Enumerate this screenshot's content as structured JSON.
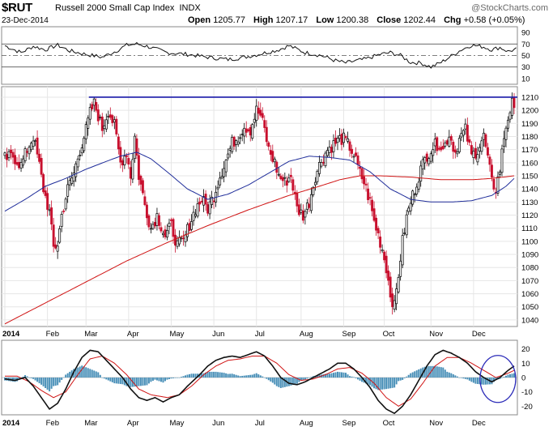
{
  "header": {
    "symbol": "$RUT",
    "name": "Russell 2000 Small Cap Index",
    "exchange": "INDX",
    "date": "23-Dec-2014",
    "watermark": "@StockCharts.com",
    "open_label": "Open",
    "open_value": "1205.77",
    "high_label": "High",
    "high_value": "1207.17",
    "low_label": "Low",
    "low_value": "1200.38",
    "close_label": "Close",
    "close_value": "1202.44",
    "chg_label": "Chg",
    "chg_value": "+0.58 (+0.05%)"
  },
  "colors": {
    "up": "#000000",
    "down": "#c8102e",
    "ma_short": "#1f2d9a",
    "ma_long": "#d01414",
    "resistance": "#1a1aa8",
    "histogram": "#4a90b8",
    "grid": "#e6e6e6",
    "circle": "#2a2ab8"
  },
  "chart_data": [
    {
      "type": "line",
      "panel": "rsi",
      "y_ticks": [
        10,
        30,
        50,
        70,
        90
      ],
      "ylim": [
        0,
        100
      ],
      "ref_lines": [
        30,
        50,
        70
      ],
      "anchors": [
        [
          0,
          67
        ],
        [
          8,
          55
        ],
        [
          14,
          66
        ],
        [
          20,
          60
        ],
        [
          26,
          68
        ],
        [
          32,
          58
        ],
        [
          40,
          52
        ],
        [
          48,
          47
        ],
        [
          55,
          58
        ],
        [
          60,
          68
        ],
        [
          65,
          70
        ],
        [
          70,
          66
        ],
        [
          80,
          55
        ],
        [
          90,
          52
        ],
        [
          100,
          47
        ],
        [
          110,
          43
        ],
        [
          118,
          47
        ],
        [
          125,
          52
        ],
        [
          130,
          56
        ],
        [
          135,
          60
        ],
        [
          140,
          67
        ],
        [
          148,
          55
        ],
        [
          156,
          50
        ],
        [
          162,
          42
        ],
        [
          168,
          37
        ],
        [
          172,
          40
        ],
        [
          178,
          44
        ],
        [
          185,
          52
        ],
        [
          190,
          55
        ],
        [
          195,
          50
        ],
        [
          200,
          38
        ],
        [
          205,
          37
        ],
        [
          210,
          30
        ],
        [
          215,
          38
        ],
        [
          220,
          49
        ],
        [
          225,
          60
        ],
        [
          230,
          68
        ],
        [
          236,
          65
        ],
        [
          240,
          60
        ],
        [
          244,
          64
        ],
        [
          248,
          57
        ],
        [
          252,
          61
        ]
      ]
    },
    {
      "type": "candlestick",
      "panel": "price",
      "title": "Russell 2000 Small Cap Index",
      "y_ticks": [
        1040,
        1050,
        1060,
        1070,
        1080,
        1090,
        1100,
        1110,
        1120,
        1130,
        1140,
        1150,
        1160,
        1170,
        1180,
        1190,
        1200,
        1210
      ],
      "ylim": [
        1035,
        1218
      ],
      "x_labels": [
        "2014",
        "Feb",
        "Mar",
        "Apr",
        "May",
        "Jun",
        "Jul",
        "Aug",
        "Sep",
        "Oct",
        "Nov",
        "Dec"
      ],
      "x_label_sessions": [
        0,
        21,
        40,
        61,
        82,
        103,
        124,
        146,
        167,
        187,
        210,
        231
      ],
      "total_sessions": 252,
      "resistance_level": 1210,
      "resistance_from_session": 43,
      "close_anchors": [
        [
          0,
          1163
        ],
        [
          4,
          1165
        ],
        [
          8,
          1158
        ],
        [
          11,
          1170
        ],
        [
          14,
          1180
        ],
        [
          17,
          1158
        ],
        [
          19,
          1140
        ],
        [
          22,
          1122
        ],
        [
          24,
          1095
        ],
        [
          26,
          1098
        ],
        [
          28,
          1120
        ],
        [
          31,
          1140
        ],
        [
          34,
          1152
        ],
        [
          37,
          1170
        ],
        [
          40,
          1185
        ],
        [
          42,
          1198
        ],
        [
          44,
          1205
        ],
        [
          46,
          1196
        ],
        [
          48,
          1186
        ],
        [
          51,
          1200
        ],
        [
          54,
          1188
        ],
        [
          57,
          1160
        ],
        [
          60,
          1168
        ],
        [
          62,
          1150
        ],
        [
          64,
          1180
        ],
        [
          66,
          1150
        ],
        [
          69,
          1128
        ],
        [
          72,
          1110
        ],
        [
          75,
          1120
        ],
        [
          79,
          1104
        ],
        [
          82,
          1112
        ],
        [
          85,
          1097
        ],
        [
          88,
          1100
        ],
        [
          91,
          1113
        ],
        [
          94,
          1125
        ],
        [
          97,
          1132
        ],
        [
          100,
          1125
        ],
        [
          103,
          1135
        ],
        [
          106,
          1150
        ],
        [
          109,
          1162
        ],
        [
          112,
          1175
        ],
        [
          115,
          1180
        ],
        [
          118,
          1188
        ],
        [
          121,
          1185
        ],
        [
          124,
          1200
        ],
        [
          126,
          1196
        ],
        [
          128,
          1185
        ],
        [
          130,
          1170
        ],
        [
          133,
          1160
        ],
        [
          135,
          1150
        ],
        [
          138,
          1145
        ],
        [
          141,
          1150
        ],
        [
          144,
          1125
        ],
        [
          147,
          1120
        ],
        [
          150,
          1130
        ],
        [
          153,
          1150
        ],
        [
          156,
          1162
        ],
        [
          159,
          1170
        ],
        [
          162,
          1174
        ],
        [
          165,
          1178
        ],
        [
          167,
          1178
        ],
        [
          170,
          1172
        ],
        [
          172,
          1166
        ],
        [
          175,
          1152
        ],
        [
          177,
          1145
        ],
        [
          180,
          1130
        ],
        [
          182,
          1115
        ],
        [
          184,
          1105
        ],
        [
          186,
          1094
        ],
        [
          188,
          1080
        ],
        [
          190,
          1060
        ],
        [
          192,
          1050
        ],
        [
          194,
          1075
        ],
        [
          196,
          1100
        ],
        [
          198,
          1118
        ],
        [
          200,
          1130
        ],
        [
          202,
          1140
        ],
        [
          205,
          1155
        ],
        [
          208,
          1166
        ],
        [
          211,
          1172
        ],
        [
          214,
          1175
        ],
        [
          216,
          1170
        ],
        [
          219,
          1182
        ],
        [
          222,
          1168
        ],
        [
          224,
          1178
        ],
        [
          227,
          1185
        ],
        [
          230,
          1165
        ],
        [
          233,
          1170
        ],
        [
          236,
          1180
        ],
        [
          238,
          1163
        ],
        [
          240,
          1145
        ],
        [
          242,
          1140
        ],
        [
          244,
          1155
        ],
        [
          246,
          1180
        ],
        [
          248,
          1195
        ],
        [
          250,
          1205
        ],
        [
          251,
          1202
        ]
      ],
      "ma_short_anchors": [
        [
          0,
          1123
        ],
        [
          10,
          1132
        ],
        [
          20,
          1142
        ],
        [
          30,
          1148
        ],
        [
          40,
          1155
        ],
        [
          50,
          1161
        ],
        [
          57,
          1165
        ],
        [
          65,
          1168
        ],
        [
          72,
          1163
        ],
        [
          80,
          1153
        ],
        [
          90,
          1140
        ],
        [
          100,
          1132
        ],
        [
          110,
          1136
        ],
        [
          120,
          1143
        ],
        [
          130,
          1152
        ],
        [
          140,
          1161
        ],
        [
          150,
          1165
        ],
        [
          160,
          1164
        ],
        [
          170,
          1162
        ],
        [
          180,
          1153
        ],
        [
          190,
          1140
        ],
        [
          200,
          1132
        ],
        [
          210,
          1130
        ],
        [
          220,
          1130
        ],
        [
          230,
          1131
        ],
        [
          240,
          1135
        ],
        [
          247,
          1142
        ],
        [
          251,
          1148
        ]
      ],
      "ma_long_anchors": [
        [
          0,
          1037
        ],
        [
          20,
          1053
        ],
        [
          40,
          1069
        ],
        [
          60,
          1085
        ],
        [
          80,
          1099
        ],
        [
          100,
          1112
        ],
        [
          120,
          1124
        ],
        [
          140,
          1135
        ],
        [
          155,
          1142
        ],
        [
          165,
          1147
        ],
        [
          175,
          1150
        ],
        [
          185,
          1150
        ],
        [
          200,
          1149
        ],
        [
          215,
          1147
        ],
        [
          230,
          1147
        ],
        [
          240,
          1148
        ],
        [
          251,
          1150
        ]
      ]
    },
    {
      "type": "line",
      "panel": "macd",
      "y_ticks": [
        -20,
        -10,
        0,
        10,
        20
      ],
      "ylim": [
        -26,
        26
      ],
      "highlight_circle_session": 241,
      "macd_anchors": [
        [
          0,
          -1
        ],
        [
          5,
          -2
        ],
        [
          10,
          0
        ],
        [
          14,
          -6
        ],
        [
          18,
          -14
        ],
        [
          22,
          -22
        ],
        [
          26,
          -18
        ],
        [
          30,
          -8
        ],
        [
          34,
          4
        ],
        [
          38,
          14
        ],
        [
          42,
          19
        ],
        [
          46,
          18
        ],
        [
          50,
          12
        ],
        [
          54,
          6
        ],
        [
          58,
          0
        ],
        [
          62,
          -8
        ],
        [
          66,
          -14
        ],
        [
          70,
          -16
        ],
        [
          74,
          -14
        ],
        [
          78,
          -17
        ],
        [
          82,
          -14
        ],
        [
          86,
          -12
        ],
        [
          90,
          -6
        ],
        [
          96,
          2
        ],
        [
          100,
          8
        ],
        [
          104,
          12
        ],
        [
          108,
          14
        ],
        [
          112,
          15
        ],
        [
          116,
          14
        ],
        [
          120,
          16
        ],
        [
          124,
          18
        ],
        [
          128,
          15
        ],
        [
          132,
          8
        ],
        [
          136,
          0
        ],
        [
          140,
          -4
        ],
        [
          144,
          -5
        ],
        [
          148,
          -3
        ],
        [
          152,
          0
        ],
        [
          156,
          3
        ],
        [
          160,
          6
        ],
        [
          164,
          10
        ],
        [
          168,
          10
        ],
        [
          172,
          6
        ],
        [
          176,
          0
        ],
        [
          180,
          -7
        ],
        [
          184,
          -16
        ],
        [
          188,
          -22
        ],
        [
          192,
          -25
        ],
        [
          196,
          -20
        ],
        [
          200,
          -12
        ],
        [
          204,
          -2
        ],
        [
          208,
          8
        ],
        [
          212,
          16
        ],
        [
          216,
          19
        ],
        [
          220,
          17
        ],
        [
          224,
          14
        ],
        [
          228,
          10
        ],
        [
          232,
          4
        ],
        [
          236,
          0
        ],
        [
          240,
          -3
        ],
        [
          244,
          0
        ],
        [
          248,
          5
        ],
        [
          251,
          8
        ]
      ],
      "signal_anchors": [
        [
          0,
          1
        ],
        [
          6,
          1
        ],
        [
          12,
          -3
        ],
        [
          18,
          -9
        ],
        [
          24,
          -14
        ],
        [
          30,
          -10
        ],
        [
          36,
          2
        ],
        [
          42,
          13
        ],
        [
          48,
          15
        ],
        [
          54,
          10
        ],
        [
          60,
          2
        ],
        [
          66,
          -8
        ],
        [
          72,
          -12
        ],
        [
          80,
          -14
        ],
        [
          86,
          -12
        ],
        [
          92,
          -6
        ],
        [
          98,
          2
        ],
        [
          104,
          8
        ],
        [
          110,
          12
        ],
        [
          116,
          13
        ],
        [
          122,
          15
        ],
        [
          128,
          15
        ],
        [
          134,
          10
        ],
        [
          140,
          2
        ],
        [
          146,
          -2
        ],
        [
          152,
          -1
        ],
        [
          158,
          2
        ],
        [
          164,
          6
        ],
        [
          170,
          7
        ],
        [
          176,
          3
        ],
        [
          182,
          -4
        ],
        [
          188,
          -14
        ],
        [
          194,
          -20
        ],
        [
          200,
          -15
        ],
        [
          206,
          -4
        ],
        [
          212,
          8
        ],
        [
          218,
          14
        ],
        [
          224,
          14
        ],
        [
          230,
          10
        ],
        [
          236,
          5
        ],
        [
          242,
          0
        ],
        [
          248,
          3
        ],
        [
          251,
          5
        ]
      ]
    }
  ],
  "macd_x_labels": [
    "2014",
    "Feb",
    "Mar",
    "Apr",
    "May",
    "Jun",
    "Jul",
    "Aug",
    "Sep",
    "Oct",
    "Nov",
    "Dec"
  ]
}
